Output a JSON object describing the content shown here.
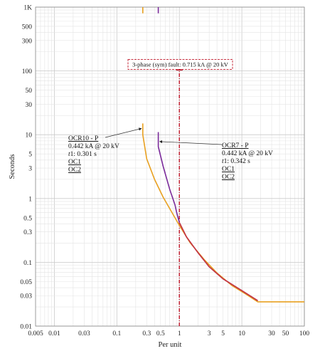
{
  "chart_data": {
    "type": "line",
    "xlabel": "Per unit",
    "ylabel": "Seconds",
    "x_scale": "log",
    "y_scale": "log",
    "xlim": [
      0.005,
      100
    ],
    "ylim": [
      0.01,
      1000
    ],
    "grid": true,
    "x_ticks": [
      {
        "v": 0.005,
        "label": "0.005"
      },
      {
        "v": 0.01,
        "label": "0.01"
      },
      {
        "v": 0.03,
        "label": "0.03"
      },
      {
        "v": 0.1,
        "label": "0.1"
      },
      {
        "v": 0.3,
        "label": "0.3"
      },
      {
        "v": 0.5,
        "label": "0.5"
      },
      {
        "v": 1,
        "label": "1"
      },
      {
        "v": 3,
        "label": "3"
      },
      {
        "v": 5,
        "label": "5"
      },
      {
        "v": 10,
        "label": "10"
      },
      {
        "v": 30,
        "label": "30"
      },
      {
        "v": 50,
        "label": "50"
      },
      {
        "v": 100,
        "label": "100"
      }
    ],
    "y_ticks": [
      {
        "v": 1000,
        "label": "1K"
      },
      {
        "v": 500,
        "label": "500"
      },
      {
        "v": 300,
        "label": "300"
      },
      {
        "v": 100,
        "label": "100"
      },
      {
        "v": 50,
        "label": "50"
      },
      {
        "v": 30,
        "label": "30"
      },
      {
        "v": 10,
        "label": "10"
      },
      {
        "v": 5,
        "label": "5"
      },
      {
        "v": 3,
        "label": "3"
      },
      {
        "v": 1,
        "label": "1"
      },
      {
        "v": 0.5,
        "label": "0.5"
      },
      {
        "v": 0.3,
        "label": "0.3"
      },
      {
        "v": 0.1,
        "label": "0.1"
      },
      {
        "v": 0.05,
        "label": "0.05"
      },
      {
        "v": 0.03,
        "label": "0.03"
      },
      {
        "v": 0.01,
        "label": "0.01"
      }
    ],
    "series": [
      {
        "name": "OCR10 - P",
        "color": "#e8a020",
        "x": [
          0.26,
          0.26,
          0.3,
          0.4,
          0.55,
          0.75,
          1.0,
          1.5,
          2.5,
          4,
          7,
          12,
          18,
          100
        ],
        "y": [
          15,
          10,
          4.2,
          2.0,
          1.05,
          0.62,
          0.38,
          0.2,
          0.11,
          0.068,
          0.043,
          0.031,
          0.024,
          0.024
        ],
        "top_stub": {
          "x": 0.26,
          "y": [
            800,
            1000
          ]
        }
      },
      {
        "name": "OCR7 - P",
        "color": "#7a2a9a",
        "x": [
          0.46,
          0.46,
          0.55,
          0.7,
          0.85,
          0.9,
          1.0,
          1.3,
          2,
          3,
          5,
          10,
          18
        ],
        "y": [
          11,
          6.5,
          3.2,
          1.4,
          0.8,
          0.62,
          0.42,
          0.25,
          0.14,
          0.085,
          0.055,
          0.036,
          0.025
        ],
        "top_stub": {
          "x": 0.46,
          "y": [
            800,
            1000
          ]
        }
      }
    ],
    "overlap_color": "#d03a35",
    "fault_line": {
      "x": 1.0,
      "label": "3-phase (sym) fault: 0.715 kA @ 20 kV",
      "label_y": 130,
      "color": "#c0182a"
    },
    "annotations": [
      {
        "lines": [
          "OCR10 - P",
          "0.442 kA @ 20 kV",
          "t1: 0.301 s",
          "OC1",
          "OC2"
        ],
        "underline": [
          true,
          false,
          false,
          true,
          true
        ],
        "arrow_target": {
          "x": 0.26,
          "y": 12.5
        }
      },
      {
        "lines": [
          "OCR7 - P",
          "0.442 kA @ 20 kV",
          "t1: 0.342 s",
          "OC1",
          "OC2"
        ],
        "underline": [
          true,
          false,
          false,
          true,
          true
        ],
        "arrow_target": {
          "x": 0.46,
          "y": 7.8
        }
      }
    ]
  }
}
